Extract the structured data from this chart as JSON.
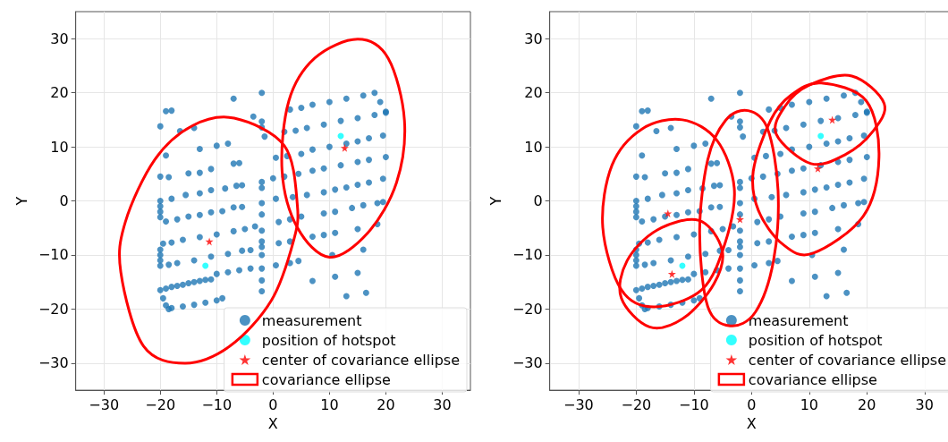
{
  "chart_data": [
    {
      "type": "scatter",
      "xlabel": "X",
      "ylabel": "Y",
      "xlim": [
        -35,
        35
      ],
      "ylim": [
        -35,
        35
      ],
      "xticks": [
        -30,
        -20,
        -10,
        0,
        10,
        20,
        30
      ],
      "yticks": [
        -30,
        -20,
        -10,
        0,
        10,
        20,
        30
      ],
      "grid": true,
      "legend": "bottom right",
      "series": [
        {
          "name": "measurement",
          "type": "scatter",
          "marker": "circle",
          "color": "#1f77b4",
          "x": [
            -20,
            -19,
            -18,
            -17,
            -16,
            -15,
            -14,
            -13,
            -12,
            -11,
            -10,
            -8,
            -6,
            -4,
            -19.5,
            -19,
            -18.5,
            -18,
            -16,
            -14,
            -12,
            -10,
            -9,
            -18.5,
            -17,
            -14,
            -11,
            -8,
            -5.5,
            -4,
            -19.5,
            -18,
            -16,
            -13,
            -10,
            -7,
            -5,
            -3.2,
            -19,
            -17,
            -15,
            -13,
            -11,
            -9,
            -7,
            -5.5,
            -18,
            -15.5,
            -13,
            -11,
            -8.5,
            -6.5,
            -5.5,
            -18.5,
            -15,
            -13,
            -11,
            -7,
            -6,
            -20,
            -19,
            -18,
            -16.5,
            -14,
            -13,
            -10,
            -8,
            -7,
            -3.5,
            -2,
            -2,
            -2,
            -1.5,
            -19,
            -20,
            -20,
            -20,
            -20,
            -20,
            -20,
            -20,
            -20,
            -20,
            -2,
            -2,
            -2,
            -2,
            -2,
            -2,
            -2,
            -2,
            -2,
            -2,
            -2,
            3,
            5,
            7,
            10,
            13,
            16,
            18,
            19,
            20,
            2,
            4,
            6,
            9,
            12,
            15,
            18,
            20,
            0.5,
            2.5,
            5,
            7,
            10,
            13,
            15,
            17,
            19.5,
            0,
            2,
            4.5,
            7,
            9,
            12,
            15,
            17,
            20,
            0.5,
            3.5,
            6,
            9,
            11,
            13,
            15,
            17,
            19.5,
            1,
            3,
            5,
            9,
            11,
            14,
            16,
            18.5,
            19.5,
            1,
            3,
            7,
            9,
            11,
            15,
            18.5,
            0.5,
            3,
            4.5,
            7,
            11,
            15,
            10.5,
            16,
            13,
            16.5
          ],
          "values": [
            -16.5,
            -16.2,
            -15.9,
            -15.7,
            -15.5,
            -15.2,
            -15,
            -14.8,
            -14.6,
            -14.5,
            -13.5,
            -13.2,
            -12.8,
            -12.5,
            -18,
            -19.3,
            -20,
            -19.8,
            -19.5,
            -19.2,
            -18.8,
            -18.4,
            -18,
            -11.8,
            -11.5,
            -11,
            -10.3,
            -9.8,
            -9.2,
            -9.1,
            -7.9,
            -7.7,
            -7.2,
            -6.7,
            -6.2,
            -5.6,
            -5.2,
            -4.7,
            -3.8,
            -3.4,
            -2.9,
            -2.6,
            -2.1,
            -1.9,
            -1.2,
            -1.1,
            0.4,
            1.1,
            1.4,
            2,
            2.3,
            2.8,
            2.9,
            4.4,
            5.1,
            5.2,
            5.9,
            6.9,
            7,
            13.8,
            16.6,
            16.7,
            12.9,
            13.5,
            9.6,
            10.2,
            10.6,
            18.9,
            15.6,
            20,
            14.7,
            13.6,
            11.9,
            8.4,
            4.5,
            0,
            -1,
            -2,
            -3,
            -9,
            -10,
            -11,
            -12,
            3.5,
            2.4,
            -0.4,
            -2.5,
            -5.5,
            -7.5,
            -8.5,
            -10,
            -12.5,
            -14.7,
            -16.7,
            16.9,
            17.2,
            17.8,
            18.3,
            18.9,
            19.5,
            20,
            18.3,
            16.5,
            12.8,
            13,
            13.5,
            14.1,
            14.8,
            15.3,
            15.9,
            16.3,
            8,
            8.3,
            8.7,
            9.5,
            10,
            10.6,
            11,
            11.6,
            12.1,
            4.2,
            4.5,
            5,
            5.6,
            6,
            6.6,
            7.2,
            7.6,
            8.1,
            0.4,
            0.7,
            1.1,
            1.6,
            2.1,
            2.5,
            3,
            3.4,
            4.1,
            -3.9,
            -3.4,
            -2.9,
            -2.3,
            -2,
            -1.3,
            -0.8,
            -0.4,
            -0.2,
            -7.8,
            -7.5,
            -6.6,
            -6.3,
            -5.9,
            -5.2,
            -4.3,
            -11.9,
            -11.5,
            -11.1,
            -14.8,
            -14,
            -13.3,
            -10,
            -9,
            -17.6,
            -17
          ]
        },
        {
          "name": "position of hotspot",
          "type": "scatter",
          "marker": "circle",
          "color": "#00ffff",
          "x": [
            12,
            -12
          ],
          "values": [
            12,
            -12
          ]
        },
        {
          "name": "center of covariance ellipse",
          "type": "scatter",
          "marker": "star",
          "color": "#ff0000",
          "x": [
            12.7,
            -11.3
          ],
          "values": [
            9.8,
            -7.5
          ]
        },
        {
          "name": "covariance ellipse",
          "type": "line",
          "color": "#ff0000"
        }
      ]
    },
    {
      "type": "scatter",
      "xlabel": "X",
      "ylabel": "Y",
      "xlim": [
        -35,
        35
      ],
      "ylim": [
        -35,
        35
      ],
      "xticks": [
        -30,
        -20,
        -10,
        0,
        10,
        20,
        30
      ],
      "yticks": [
        -30,
        -20,
        -10,
        0,
        10,
        20,
        30
      ],
      "grid": true,
      "legend": "bottom right",
      "series": [
        {
          "name": "measurement",
          "type": "scatter",
          "marker": "circle",
          "color": "#1f77b4",
          "x": [
            -20,
            -19,
            -18,
            -17,
            -16,
            -15,
            -14,
            -13,
            -12,
            -11,
            -10,
            -8,
            -6,
            -4,
            -19.5,
            -19,
            -18.5,
            -18,
            -16,
            -14,
            -12,
            -10,
            -9,
            -18.5,
            -17,
            -14,
            -11,
            -8,
            -5.5,
            -4,
            -19.5,
            -18,
            -16,
            -13,
            -10,
            -7,
            -5,
            -3.2,
            -19,
            -17,
            -15,
            -13,
            -11,
            -9,
            -7,
            -5.5,
            -18,
            -15.5,
            -13,
            -11,
            -8.5,
            -6.5,
            -5.5,
            -18.5,
            -15,
            -13,
            -11,
            -7,
            -6,
            -20,
            -19,
            -18,
            -16.5,
            -14,
            -13,
            -10,
            -8,
            -7,
            -3.5,
            -2,
            -2,
            -2,
            -1.5,
            -19,
            -20,
            -20,
            -20,
            -20,
            -20,
            -20,
            -20,
            -20,
            -20,
            -2,
            -2,
            -2,
            -2,
            -2,
            -2,
            -2,
            -2,
            -2,
            -2,
            -2,
            3,
            5,
            7,
            10,
            13,
            16,
            18,
            19,
            20,
            2,
            4,
            6,
            9,
            12,
            15,
            18,
            20,
            0.5,
            2.5,
            5,
            7,
            10,
            13,
            15,
            17,
            19.5,
            0,
            2,
            4.5,
            7,
            9,
            12,
            15,
            17,
            20,
            0.5,
            3.5,
            6,
            9,
            11,
            13,
            15,
            17,
            19.5,
            1,
            3,
            5,
            9,
            11,
            14,
            16,
            18.5,
            19.5,
            1,
            3,
            7,
            9,
            11,
            15,
            18.5,
            0.5,
            3,
            4.5,
            7,
            11,
            15,
            10.5,
            16,
            13,
            16.5
          ],
          "values": [
            -16.5,
            -16.2,
            -15.9,
            -15.7,
            -15.5,
            -15.2,
            -15,
            -14.8,
            -14.6,
            -14.5,
            -13.5,
            -13.2,
            -12.8,
            -12.5,
            -18,
            -19.3,
            -20,
            -19.8,
            -19.5,
            -19.2,
            -18.8,
            -18.4,
            -18,
            -11.8,
            -11.5,
            -11,
            -10.3,
            -9.8,
            -9.2,
            -9.1,
            -7.9,
            -7.7,
            -7.2,
            -6.7,
            -6.2,
            -5.6,
            -5.2,
            -4.7,
            -3.8,
            -3.4,
            -2.9,
            -2.6,
            -2.1,
            -1.9,
            -1.2,
            -1.1,
            0.4,
            1.1,
            1.4,
            2,
            2.3,
            2.8,
            2.9,
            4.4,
            5.1,
            5.2,
            5.9,
            6.9,
            7,
            13.8,
            16.6,
            16.7,
            12.9,
            13.5,
            9.6,
            10.2,
            10.6,
            18.9,
            15.6,
            20,
            14.7,
            13.6,
            11.9,
            8.4,
            4.5,
            0,
            -1,
            -2,
            -3,
            -9,
            -10,
            -11,
            -12,
            3.5,
            2.4,
            -0.4,
            -2.5,
            -5.5,
            -7.5,
            -8.5,
            -10,
            -12.5,
            -14.7,
            -16.7,
            16.9,
            17.2,
            17.8,
            18.3,
            18.9,
            19.5,
            20,
            18.3,
            16.5,
            12.8,
            13,
            13.5,
            14.1,
            14.8,
            15.3,
            15.9,
            16.3,
            8,
            8.3,
            8.7,
            9.5,
            10,
            10.6,
            11,
            11.6,
            12.1,
            4.2,
            4.5,
            5,
            5.6,
            6,
            6.6,
            7.2,
            7.6,
            8.1,
            0.4,
            0.7,
            1.1,
            1.6,
            2.1,
            2.5,
            3,
            3.4,
            4.1,
            -3.9,
            -3.4,
            -2.9,
            -2.3,
            -2,
            -1.3,
            -0.8,
            -0.4,
            -0.2,
            -7.8,
            -7.5,
            -6.6,
            -6.3,
            -5.9,
            -5.2,
            -4.3,
            -11.9,
            -11.5,
            -11.1,
            -14.8,
            -14,
            -13.3,
            -10,
            -9,
            -17.6,
            -17
          ]
        },
        {
          "name": "position of hotspot",
          "type": "scatter",
          "marker": "circle",
          "color": "#00ffff",
          "x": [
            12,
            -12
          ],
          "values": [
            12,
            -12
          ]
        },
        {
          "name": "center of covariance ellipse",
          "type": "scatter",
          "marker": "star",
          "color": "#ff0000",
          "x": [
            -14.5,
            -2,
            14,
            11.5,
            -13.8
          ],
          "values": [
            -2.3,
            -3.4,
            15,
            6,
            -13.5
          ]
        },
        {
          "name": "covariance ellipse",
          "type": "line",
          "color": "#ff0000"
        }
      ]
    }
  ]
}
